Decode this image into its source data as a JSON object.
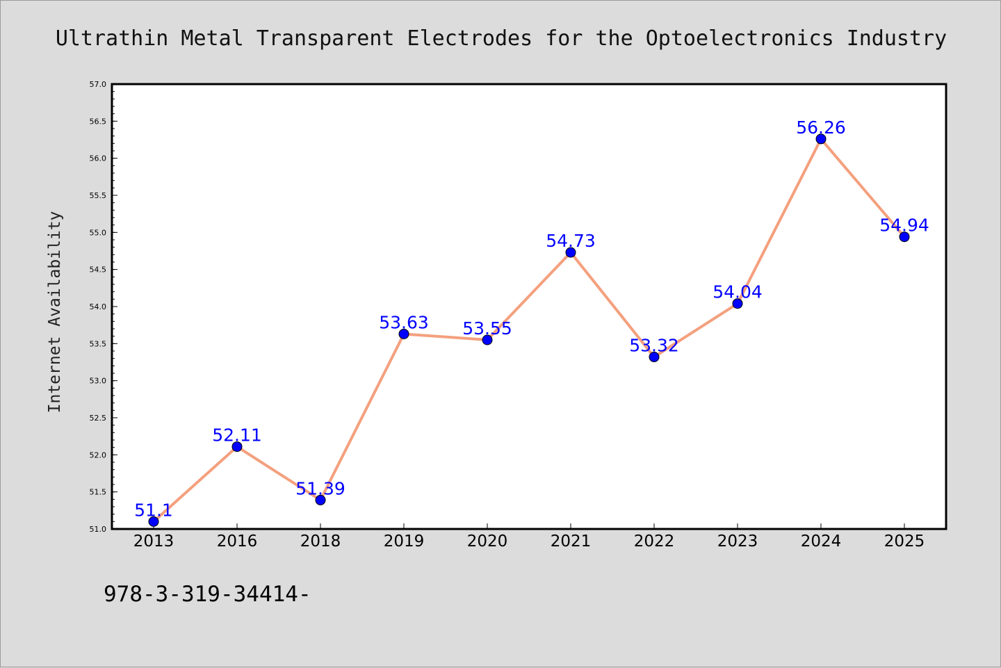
{
  "page": {
    "footer_text": "978-3-319-34414-"
  },
  "chart_data": {
    "type": "line",
    "title": "Ultrathin Metal Transparent Electrodes for the Optoelectronics Industry",
    "xlabel": "",
    "ylabel": "Internet Availability",
    "categories": [
      "2013",
      "2016",
      "2018",
      "2019",
      "2020",
      "2021",
      "2022",
      "2023",
      "2024",
      "2025"
    ],
    "series": [
      {
        "values": [
          51.1,
          52.11,
          51.39,
          53.63,
          53.55,
          54.73,
          53.32,
          54.04,
          56.26,
          54.94
        ],
        "data_labels": [
          "51.1",
          "52.11",
          "51.39",
          "53.63",
          "53.55",
          "54.73",
          "53.32",
          "54.04",
          "56.26",
          "54.94"
        ]
      }
    ],
    "ylim": [
      51.0,
      57.0
    ],
    "yticks": [
      "51.0",
      "51.5",
      "52.0",
      "52.5",
      "53.0",
      "53.5",
      "54.0",
      "54.5",
      "55.0",
      "55.5",
      "56.0",
      "56.5",
      "57.0"
    ],
    "grid": false,
    "legend": "none",
    "colors": {
      "line": "#f4a07e",
      "marker": "#0000ff",
      "data_label": "#0000ff",
      "background": "#dcdcdc",
      "plot_area": "#ffffff"
    }
  }
}
